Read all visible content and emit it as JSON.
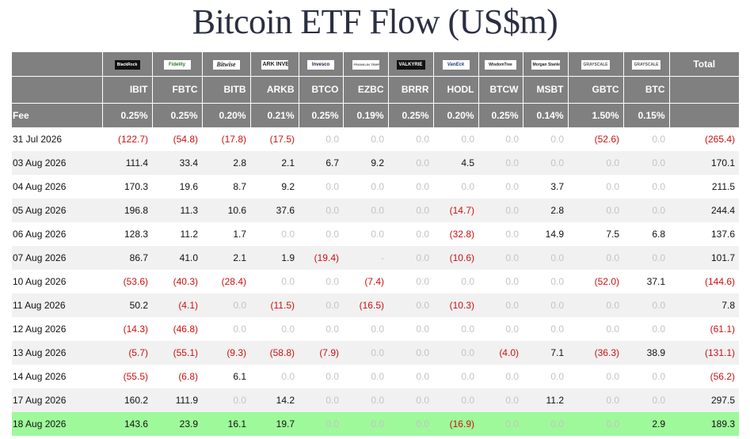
{
  "title": "Bitcoin ETF Flow (US$m)",
  "header": {
    "total_label": "Total",
    "fee_label": "Fee"
  },
  "issuers": [
    {
      "logo_text": "BlackRock",
      "logo_icon": "blackrock-logo",
      "ticker": "IBIT",
      "fee": "0.25%"
    },
    {
      "logo_text": "Fidelity",
      "logo_icon": "fidelity-logo",
      "ticker": "FBTC",
      "fee": "0.25%"
    },
    {
      "logo_text": "Bitwise",
      "logo_icon": "bitwise-logo",
      "ticker": "BITB",
      "fee": "0.20%"
    },
    {
      "logo_text": "ARK INVEST",
      "logo_icon": "ark-invest-logo",
      "ticker": "ARKB",
      "fee": "0.21%"
    },
    {
      "logo_text": "Invesco",
      "logo_icon": "invesco-logo",
      "ticker": "BTCO",
      "fee": "0.25%"
    },
    {
      "logo_text": "FRANKLIN TEMPLETON",
      "logo_icon": "franklin-templeton-logo",
      "ticker": "EZBC",
      "fee": "0.19%"
    },
    {
      "logo_text": "VALKYRIE",
      "logo_icon": "valkyrie-logo",
      "ticker": "BRRR",
      "fee": "0.25%"
    },
    {
      "logo_text": "VanEck",
      "logo_icon": "vaneck-logo",
      "ticker": "HODL",
      "fee": "0.20%"
    },
    {
      "logo_text": "WisdomTree",
      "logo_icon": "wisdomtree-logo",
      "ticker": "BTCW",
      "fee": "0.25%"
    },
    {
      "logo_text": "Morgan Stanley",
      "logo_icon": "morgan-stanley-logo",
      "ticker": "MSBT",
      "fee": "0.14%"
    },
    {
      "logo_text": "GRAYSCALE",
      "logo_icon": "grayscale-logo",
      "ticker": "GBTC",
      "fee": "1.50%"
    },
    {
      "logo_text": "GRAYSCALE",
      "logo_icon": "grayscale-logo",
      "ticker": "BTC",
      "fee": "0.15%"
    }
  ],
  "rows": [
    {
      "date": "31 Jul 2026",
      "values": [
        "(122.7)",
        "(54.8)",
        "(17.8)",
        "(17.5)",
        "0.0",
        "0.0",
        "0.0",
        "0.0",
        "0.0",
        "0.0",
        "(52.6)",
        "0.0"
      ],
      "total": "(265.4)"
    },
    {
      "date": "03 Aug 2026",
      "values": [
        "111.4",
        "33.4",
        "2.8",
        "2.1",
        "6.7",
        "9.2",
        "0.0",
        "4.5",
        "0.0",
        "0.0",
        "0.0",
        "0.0"
      ],
      "total": "170.1"
    },
    {
      "date": "04 Aug 2026",
      "values": [
        "170.3",
        "19.6",
        "8.7",
        "9.2",
        "0.0",
        "0.0",
        "0.0",
        "0.0",
        "0.0",
        "3.7",
        "0.0",
        "0.0"
      ],
      "total": "211.5"
    },
    {
      "date": "05 Aug 2026",
      "values": [
        "196.8",
        "11.3",
        "10.6",
        "37.6",
        "0.0",
        "0.0",
        "0.0",
        "(14.7)",
        "0.0",
        "2.8",
        "0.0",
        "0.0"
      ],
      "total": "244.4"
    },
    {
      "date": "06 Aug 2026",
      "values": [
        "128.3",
        "11.2",
        "1.7",
        "0.0",
        "0.0",
        "0.0",
        "0.0",
        "(32.8)",
        "0.0",
        "14.9",
        "7.5",
        "6.8"
      ],
      "total": "137.6"
    },
    {
      "date": "07 Aug 2026",
      "values": [
        "86.7",
        "41.0",
        "2.1",
        "1.9",
        "(19.4)",
        "-",
        "0.0",
        "(10.6)",
        "0.0",
        "0.0",
        "0.0",
        "0.0"
      ],
      "total": "101.7"
    },
    {
      "date": "10 Aug 2026",
      "values": [
        "(53.6)",
        "(40.3)",
        "(28.4)",
        "0.0",
        "0.0",
        "(7.4)",
        "0.0",
        "0.0",
        "0.0",
        "0.0",
        "(52.0)",
        "37.1"
      ],
      "total": "(144.6)"
    },
    {
      "date": "11 Aug 2026",
      "values": [
        "50.2",
        "(4.1)",
        "0.0",
        "(11.5)",
        "0.0",
        "(16.5)",
        "0.0",
        "(10.3)",
        "0.0",
        "0.0",
        "0.0",
        "0.0"
      ],
      "total": "7.8"
    },
    {
      "date": "12 Aug 2026",
      "values": [
        "(14.3)",
        "(46.8)",
        "0.0",
        "0.0",
        "0.0",
        "0.0",
        "0.0",
        "0.0",
        "0.0",
        "0.0",
        "0.0",
        "0.0"
      ],
      "total": "(61.1)"
    },
    {
      "date": "13 Aug 2026",
      "values": [
        "(5.7)",
        "(55.1)",
        "(9.3)",
        "(58.8)",
        "(7.9)",
        "0.0",
        "0.0",
        "0.0",
        "(4.0)",
        "7.1",
        "(36.3)",
        "38.9"
      ],
      "total": "(131.1)"
    },
    {
      "date": "14 Aug 2026",
      "values": [
        "(55.5)",
        "(6.8)",
        "6.1",
        "0.0",
        "0.0",
        "0.0",
        "0.0",
        "0.0",
        "0.0",
        "0.0",
        "0.0",
        "0.0"
      ],
      "total": "(56.2)"
    },
    {
      "date": "17 Aug 2026",
      "values": [
        "160.2",
        "111.9",
        "0.0",
        "14.2",
        "0.0",
        "0.0",
        "0.0",
        "0.0",
        "0.0",
        "11.2",
        "0.0",
        "0.0"
      ],
      "total": "297.5"
    },
    {
      "date": "18 Aug 2026",
      "values": [
        "143.6",
        "23.9",
        "16.1",
        "19.7",
        "0.0",
        "0.0",
        "0.0",
        "(16.9)",
        "0.0",
        "0.0",
        "0.0",
        "2.9"
      ],
      "total": "189.3"
    }
  ],
  "highlight_row_color": "#9ef99a",
  "negative_color": "#cc1111",
  "zero_color": "#c4c4c4",
  "header_color": "#808080"
}
